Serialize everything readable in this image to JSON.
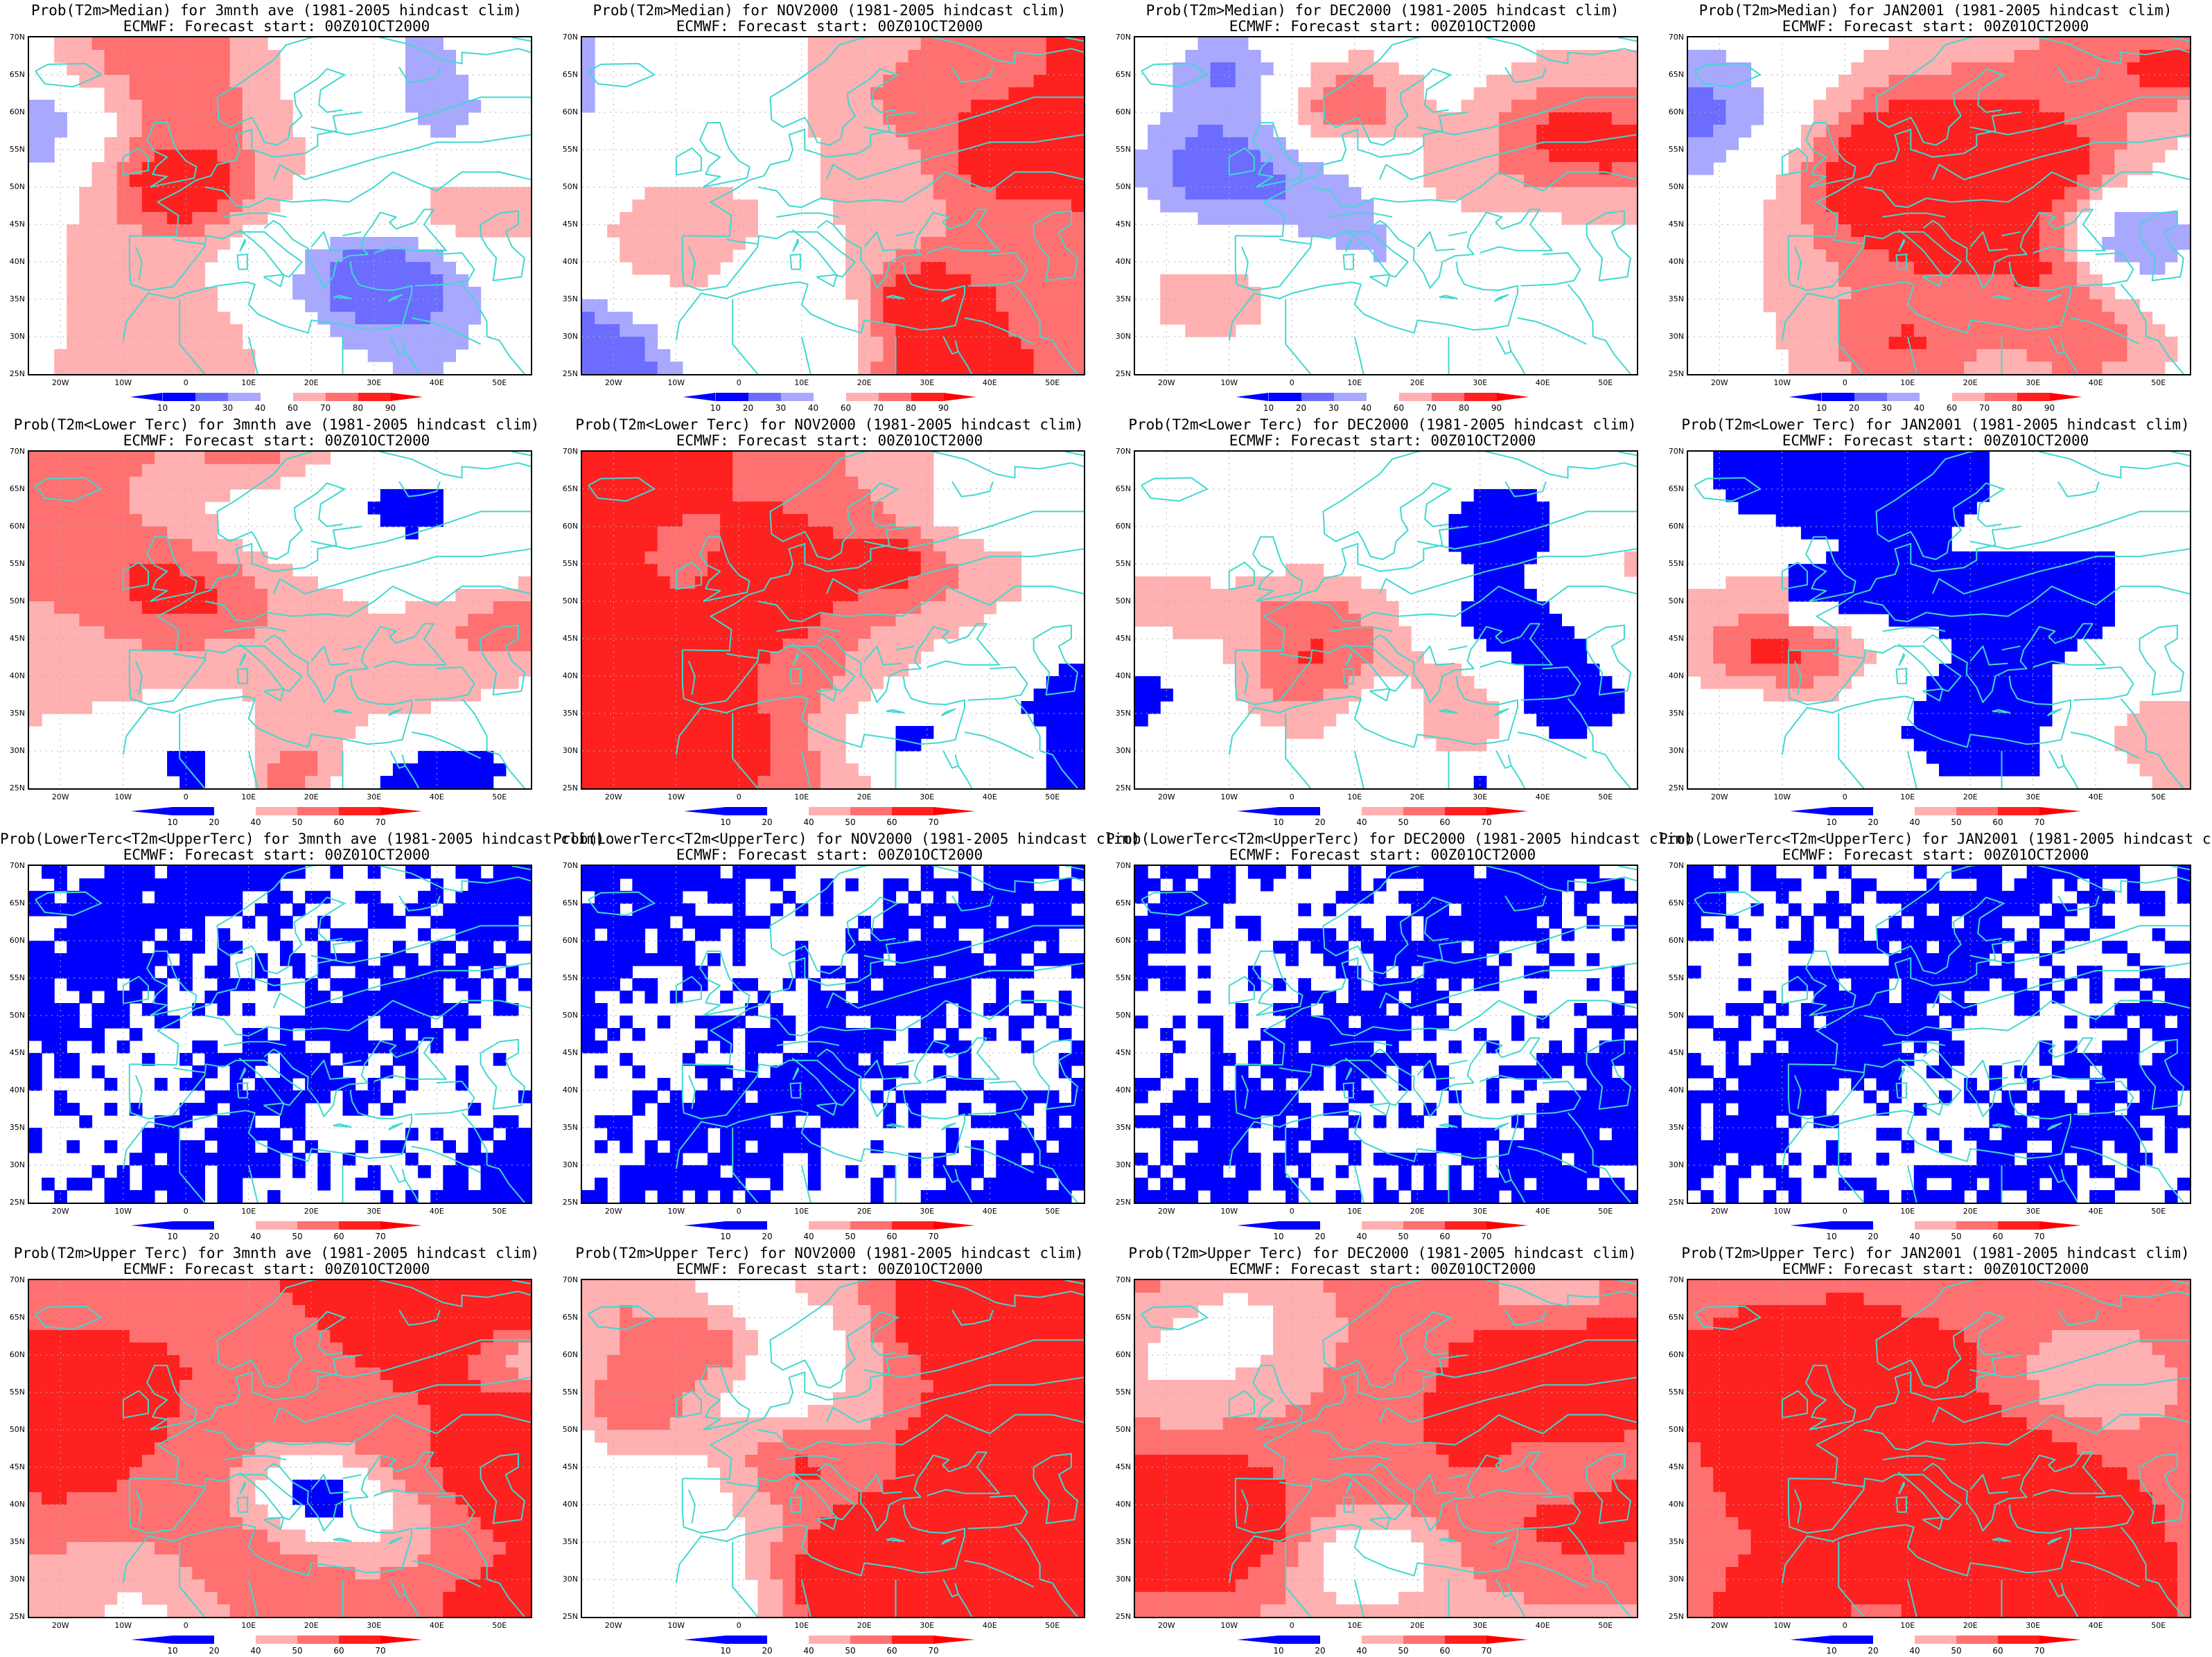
{
  "colors": {
    "coast": "#40d8d0",
    "grid": "#b0b0b0",
    "blue_dark": "#0000ff",
    "blue_mid": "#6c6cff",
    "blue_light": "#a8a8ff",
    "red_light": "#ffb0b0",
    "red_mid": "#ff7070",
    "red_dark": "#ff2020"
  },
  "lat_labels": [
    "70N",
    "65N",
    "60N",
    "55N",
    "50N",
    "45N",
    "40N",
    "35N",
    "30N",
    "25N"
  ],
  "lon_labels": [
    "20W",
    "10W",
    "0",
    "10E",
    "20E",
    "30E",
    "40E",
    "50E"
  ],
  "colorbars": {
    "median": [
      "10",
      "20",
      "30",
      "40",
      "60",
      "70",
      "80",
      "90"
    ],
    "tercile": [
      "10",
      "20",
      "40",
      "50",
      "60",
      "70"
    ]
  },
  "panels": [
    {
      "title1": "Prob(T2m>Median) for 3mnth ave (1981-2005 hindcast clim)",
      "title2": "ECMWF: Forecast start: 00Z01OCT2000",
      "scale": "median",
      "pattern": "mixed-red"
    },
    {
      "title1": "Prob(T2m>Median) for NOV2000 (1981-2005 hindcast clim)",
      "title2": "ECMWF: Forecast start: 00Z01OCT2000",
      "scale": "median",
      "pattern": "east-red"
    },
    {
      "title1": "Prob(T2m>Median) for DEC2000 (1981-2005 hindcast clim)",
      "title2": "ECMWF: Forecast start: 00Z01OCT2000",
      "scale": "median",
      "pattern": "center-blue"
    },
    {
      "title1": "Prob(T2m>Median) for JAN2001 (1981-2005 hindcast clim)",
      "title2": "ECMWF: Forecast start: 00Z01OCT2000",
      "scale": "median",
      "pattern": "center-red"
    },
    {
      "title1": "Prob(T2m<Lower Terc) for 3mnth ave (1981-2005 hindcast clim)",
      "title2": "ECMWF: Forecast start: 00Z01OCT2000",
      "scale": "tercile",
      "pattern": "west-red"
    },
    {
      "title1": "Prob(T2m<Lower Terc) for NOV2000 (1981-2005 hindcast clim)",
      "title2": "ECMWF: Forecast start: 00Z01OCT2000",
      "scale": "tercile",
      "pattern": "west-red-east-blue"
    },
    {
      "title1": "Prob(T2m<Lower Terc) for DEC2000 (1981-2005 hindcast clim)",
      "title2": "ECMWF: Forecast start: 00Z01OCT2000",
      "scale": "tercile",
      "pattern": "center-red-lower"
    },
    {
      "title1": "Prob(T2m<Lower Terc) for JAN2001 (1981-2005 hindcast clim)",
      "title2": "ECMWF: Forecast start: 00Z01OCT2000",
      "scale": "tercile",
      "pattern": "red-with-blue-band"
    },
    {
      "title1": "Prob(LowerTerc<T2m<UpperTerc) for 3mnth ave (1981-2005 hindcast clim)",
      "title2": "ECMWF: Forecast start: 00Z01OCT2000",
      "scale": "tercile",
      "pattern": "blue-full"
    },
    {
      "title1": "Prob(LowerTerc<T2m<UpperTerc) for NOV2000 (1981-2005 hindcast clim)",
      "title2": "ECMWF: Forecast start: 00Z01OCT2000",
      "scale": "tercile",
      "pattern": "blue-full"
    },
    {
      "title1": "Prob(LowerTerc<T2m<UpperTerc) for DEC2000 (1981-2005 hindcast clim)",
      "title2": "ECMWF: Forecast start: 00Z01OCT2000",
      "scale": "tercile",
      "pattern": "blue-full"
    },
    {
      "title1": "Prob(LowerTerc<T2m<UpperTerc) for JAN2001 (1981-2005 hindcast clim)",
      "title2": "ECMWF: Forecast start: 00Z01OCT2000",
      "scale": "tercile",
      "pattern": "blue-full"
    },
    {
      "title1": "Prob(T2m>Upper Terc) for 3mnth ave (1981-2005 hindcast clim)",
      "title2": "ECMWF: Forecast start: 00Z01OCT2000",
      "scale": "tercile",
      "pattern": "mixed-red-strong"
    },
    {
      "title1": "Prob(T2m>Upper Terc) for NOV2000 (1981-2005 hindcast clim)",
      "title2": "ECMWF: Forecast start: 00Z01OCT2000",
      "scale": "tercile",
      "pattern": "east-red-strong"
    },
    {
      "title1": "Prob(T2m>Upper Terc) for DEC2000 (1981-2005 hindcast clim)",
      "title2": "ECMWF: Forecast start: 00Z01OCT2000",
      "scale": "tercile",
      "pattern": "north-red"
    },
    {
      "title1": "Prob(T2m>Upper Terc) for JAN2001 (1981-2005 hindcast clim)",
      "title2": "ECMWF: Forecast start: 00Z01OCT2000",
      "scale": "tercile",
      "pattern": "center-red-strong"
    }
  ]
}
